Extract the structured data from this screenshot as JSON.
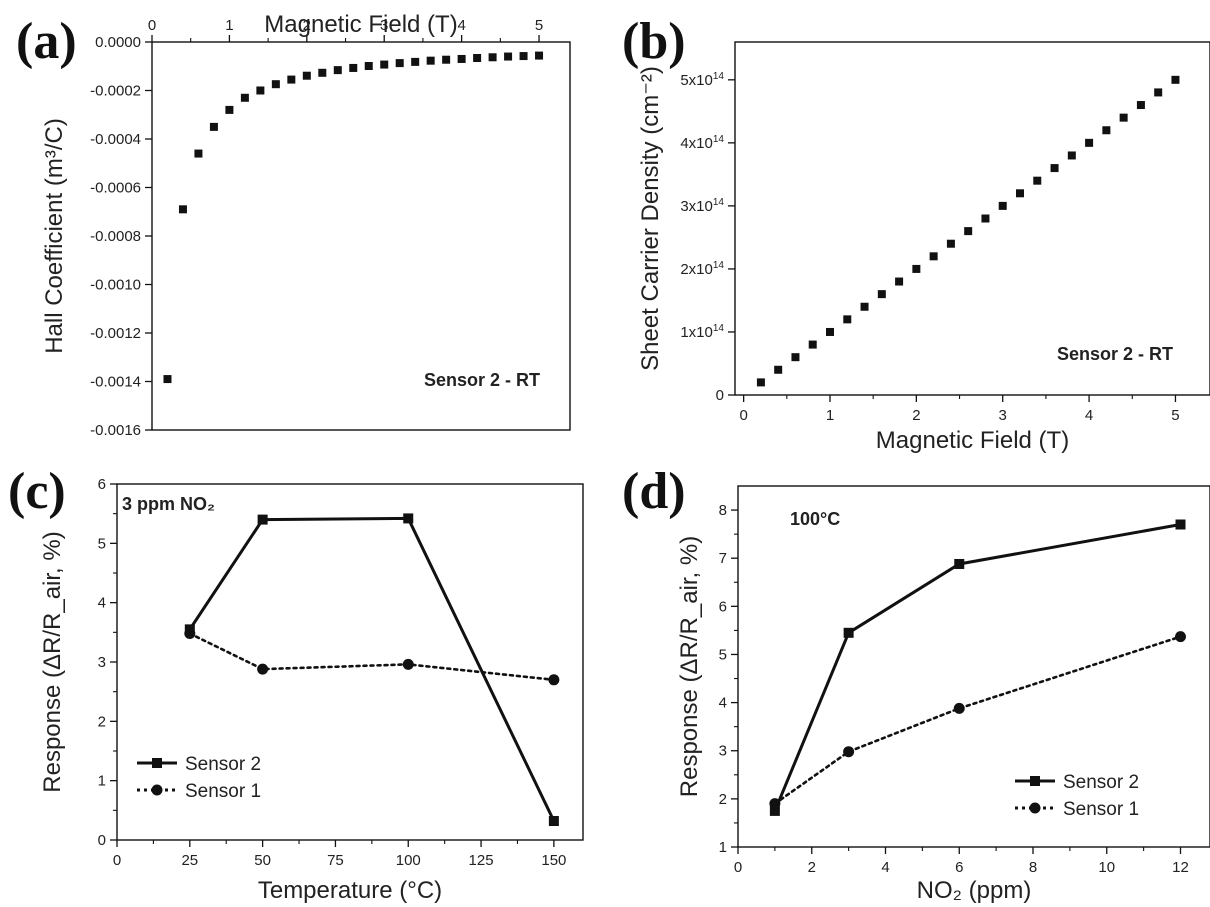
{
  "colors": {
    "ink": "#111111",
    "background": "#ffffff"
  },
  "chart_data": [
    {
      "panel": "(a)",
      "type": "scatter",
      "xlabel": "Magnetic Field (T)",
      "ylabel": "Hall Coefficient (m³/C)",
      "x_axis_position": "top",
      "xlim": [
        0,
        5.4
      ],
      "ylim": [
        -0.0016,
        0.0
      ],
      "x_ticks": [
        "0",
        "1",
        "2",
        "3",
        "4",
        "5"
      ],
      "y_ticks": [
        "0.0000",
        "-0.0002",
        "-0.0004",
        "-0.0006",
        "-0.0008",
        "-0.0010",
        "-0.0012",
        "-0.0014",
        "-0.0016"
      ],
      "annotation": "Sensor 2 - RT",
      "grid": false,
      "series": [
        {
          "marker": "square",
          "x": [
            0.2,
            0.4,
            0.6,
            0.8,
            1.0,
            1.2,
            1.4,
            1.6,
            1.8,
            2.0,
            2.2,
            2.4,
            2.6,
            2.8,
            3.0,
            3.2,
            3.4,
            3.6,
            3.8,
            4.0,
            4.2,
            4.4,
            4.6,
            4.8,
            5.0
          ],
          "y": [
            -0.00139,
            -0.00069,
            -0.00046,
            -0.00035,
            -0.00028,
            -0.00023,
            -0.0002,
            -0.000174,
            -0.000155,
            -0.000139,
            -0.000127,
            -0.000116,
            -0.000107,
            -9.9e-05,
            -9.3e-05,
            -8.7e-05,
            -8.2e-05,
            -7.7e-05,
            -7.3e-05,
            -7e-05,
            -6.6e-05,
            -6.3e-05,
            -6e-05,
            -5.8e-05,
            -5.6e-05
          ]
        }
      ]
    },
    {
      "panel": "(b)",
      "type": "scatter",
      "xlabel": "Magnetic Field (T)",
      "ylabel": "Sheet Carrier Density (cm⁻²)",
      "xlim": [
        -0.1,
        5.4
      ],
      "ylim": [
        0,
        5.6
      ],
      "x_ticks": [
        "0",
        "1",
        "2",
        "3",
        "4",
        "5"
      ],
      "y_ticks": [
        "0",
        "1x10¹⁴",
        "2x10¹⁴",
        "3x10¹⁴",
        "4x10¹⁴",
        "5x10¹⁴"
      ],
      "y_unit_note": "values in units of 10¹⁴ cm⁻²",
      "annotation": "Sensor 2 - RT",
      "grid": false,
      "series": [
        {
          "marker": "square",
          "x": [
            0.2,
            0.4,
            0.6,
            0.8,
            1.0,
            1.2,
            1.4,
            1.6,
            1.8,
            2.0,
            2.2,
            2.4,
            2.6,
            2.8,
            3.0,
            3.2,
            3.4,
            3.6,
            3.8,
            4.0,
            4.2,
            4.4,
            4.6,
            4.8,
            5.0
          ],
          "y": [
            0.2,
            0.4,
            0.6,
            0.8,
            1.0,
            1.2,
            1.4,
            1.6,
            1.8,
            2.0,
            2.2,
            2.4,
            2.6,
            2.8,
            3.0,
            3.2,
            3.4,
            3.6,
            3.8,
            4.0,
            4.2,
            4.4,
            4.6,
            4.8,
            5.0
          ]
        }
      ]
    },
    {
      "panel": "(c)",
      "type": "line",
      "xlabel": "Temperature (°C)",
      "ylabel": "Response (ΔR/R_air, %)",
      "xlim": [
        0,
        160
      ],
      "ylim": [
        0,
        6
      ],
      "x_ticks": [
        "0",
        "25",
        "50",
        "75",
        "100",
        "125",
        "150"
      ],
      "y_ticks": [
        "0",
        "1",
        "2",
        "3",
        "4",
        "5",
        "6"
      ],
      "annotation": "3 ppm NO₂",
      "legend": "bottom-left",
      "grid": false,
      "series": [
        {
          "name": "Sensor 2",
          "marker": "square",
          "style": "solid",
          "x": [
            25,
            50,
            100,
            150
          ],
          "y": [
            3.55,
            5.4,
            5.42,
            0.32
          ]
        },
        {
          "name": "Sensor 1",
          "marker": "circle",
          "style": "dotted",
          "x": [
            25,
            50,
            100,
            150
          ],
          "y": [
            3.48,
            2.88,
            2.96,
            2.7
          ]
        }
      ]
    },
    {
      "panel": "(d)",
      "type": "line",
      "xlabel": "NO₂ (ppm)",
      "ylabel": "Response (ΔR/R_air, %)",
      "xlim": [
        0,
        12.8
      ],
      "ylim": [
        1,
        8.5
      ],
      "x_ticks": [
        "0",
        "2",
        "4",
        "6",
        "8",
        "10",
        "12"
      ],
      "y_ticks": [
        "1",
        "2",
        "3",
        "4",
        "5",
        "6",
        "7",
        "8"
      ],
      "annotation": "100°C",
      "legend": "bottom-right",
      "grid": false,
      "series": [
        {
          "name": "Sensor 2",
          "marker": "square",
          "style": "solid",
          "x": [
            1,
            3,
            6,
            12
          ],
          "y": [
            1.75,
            5.45,
            6.88,
            7.7
          ]
        },
        {
          "name": "Sensor 1",
          "marker": "circle",
          "style": "dotted",
          "x": [
            1,
            3,
            6,
            12
          ],
          "y": [
            1.9,
            2.98,
            3.88,
            5.37
          ]
        }
      ]
    }
  ]
}
